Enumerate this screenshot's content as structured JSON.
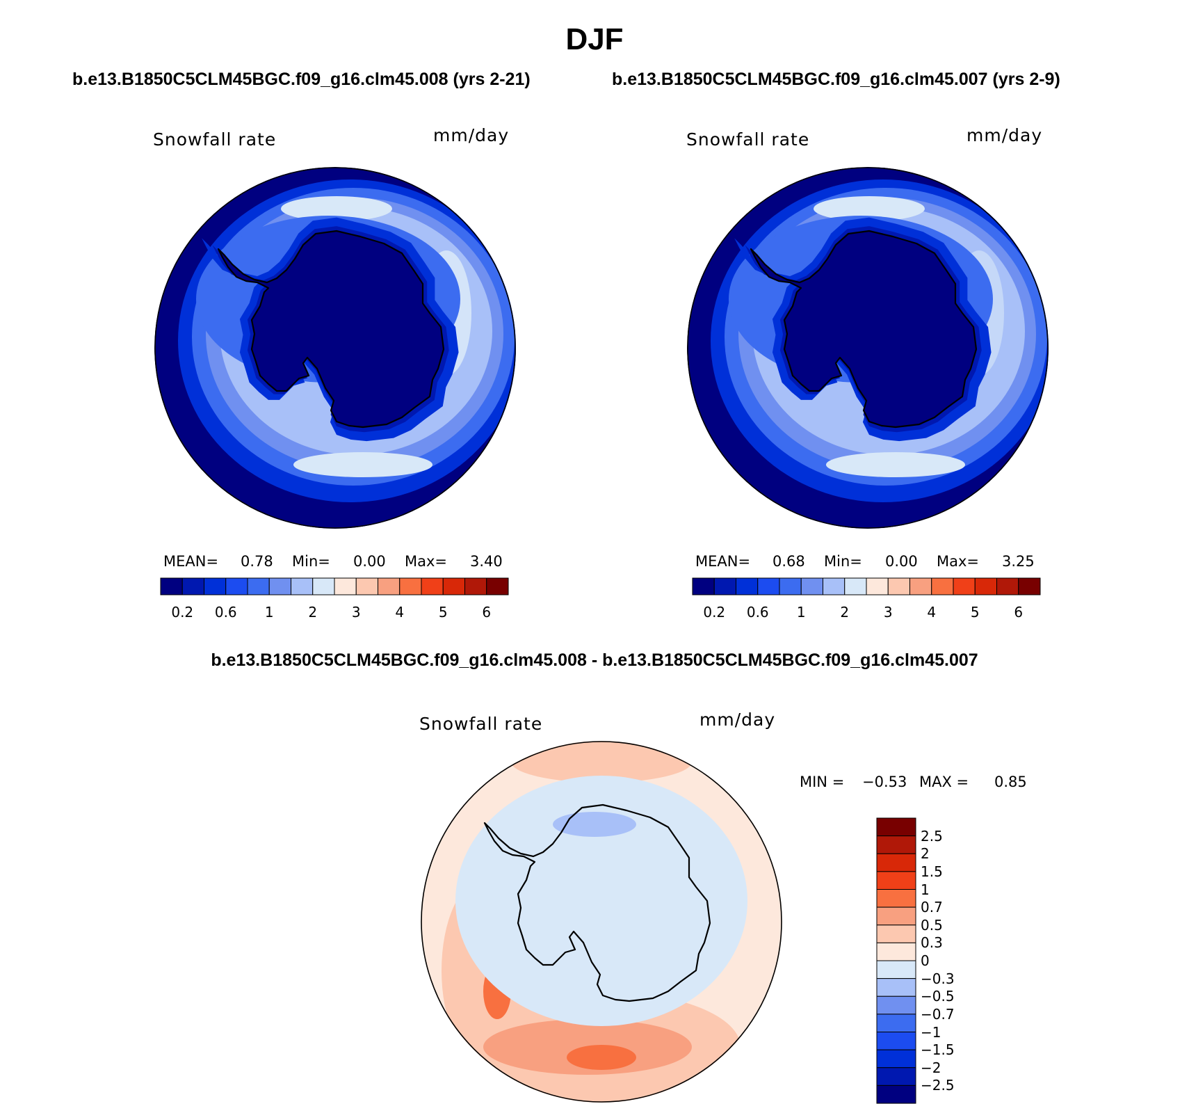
{
  "title": "DJF",
  "panels": [
    {
      "case_title": "b.e13.B1850C5CLM45BGC.f09_g16.clm45.008 (yrs 2-21)",
      "variable": "Snowfall rate",
      "units": "mm/day",
      "stats": {
        "mean_label": "MEAN=",
        "mean": "0.78",
        "min_label": "Min=",
        "min": "0.00",
        "max_label": "Max=",
        "max": "3.40"
      }
    },
    {
      "case_title": "b.e13.B1850C5CLM45BGC.f09_g16.clm45.007 (yrs 2-9)",
      "variable": "Snowfall rate",
      "units": "mm/day",
      "stats": {
        "mean_label": "MEAN=",
        "mean": "0.68",
        "min_label": "Min=",
        "min": "0.00",
        "max_label": "Max=",
        "max": "3.25"
      }
    }
  ],
  "abs_colorbar": {
    "colors": [
      "#000080",
      "#0018b0",
      "#0030d8",
      "#1c4cf0",
      "#3c6cf0",
      "#7090f0",
      "#a8c0f8",
      "#d8e8f8",
      "#fde8dc",
      "#fcc8b0",
      "#f8a080",
      "#f87040",
      "#f04018",
      "#d82808",
      "#b01808",
      "#780000"
    ],
    "tick_labels": [
      "0.2",
      "0.6",
      "1",
      "2",
      "3",
      "4",
      "5",
      "6"
    ]
  },
  "difference": {
    "title": "b.e13.B1850C5CLM45BGC.f09_g16.clm45.008 - b.e13.B1850C5CLM45BGC.f09_g16.clm45.007",
    "variable": "Snowfall rate",
    "units": "mm/day",
    "stats": {
      "min_label": "MIN =",
      "min": "−0.53",
      "max_label": "MAX =",
      "max": "0.85"
    },
    "colorbar": {
      "colors": [
        "#780000",
        "#b01808",
        "#d82808",
        "#f04018",
        "#f87040",
        "#f8a080",
        "#fcc8b0",
        "#fde8dc",
        "#d8e8f8",
        "#a8c0f8",
        "#7090f0",
        "#3c6cf0",
        "#1c4cf0",
        "#0030d8",
        "#0018b0",
        "#000080"
      ],
      "tick_labels": [
        "2.5",
        "2",
        "1.5",
        "1",
        "0.7",
        "0.5",
        "0.3",
        "0",
        "−0.3",
        "−0.5",
        "−0.7",
        "−1",
        "−1.5",
        "−2",
        "−2.5"
      ]
    }
  },
  "field_colors": {
    "outer": "#000080",
    "deep": "#0030d8",
    "mid": "#3c6cf0",
    "light": "#7090f0",
    "pale": "#a8c0f8",
    "palest": "#d8e8f8",
    "continent": "#000080",
    "coast": "#0018b0",
    "diff_pos": "#fde8dc",
    "diff_pos2": "#fcc8b0",
    "diff_pos3": "#f8a080",
    "diff_pos4": "#f87040",
    "diff_neg": "#d8e8f8",
    "diff_neg2": "#a8c0f8"
  }
}
